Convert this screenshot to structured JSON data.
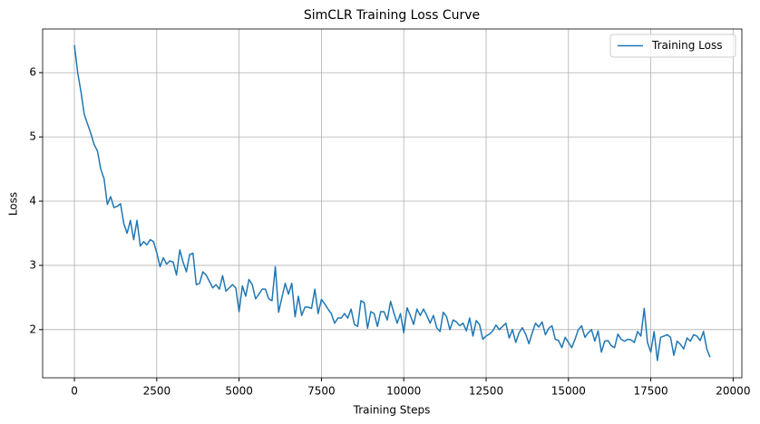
{
  "chart_data": {
    "type": "line",
    "title": "SimCLR Training Loss Curve",
    "x_label": "Training Steps",
    "y_label": "Loss",
    "x": [
      0,
      100,
      200,
      300,
      400,
      500,
      600,
      700,
      800,
      900,
      1000,
      1100,
      1200,
      1300,
      1400,
      1500,
      1600,
      1700,
      1800,
      1900,
      2000,
      2100,
      2200,
      2300,
      2400,
      2500,
      2600,
      2700,
      2800,
      2900,
      3000,
      3100,
      3200,
      3300,
      3400,
      3500,
      3600,
      3700,
      3800,
      3900,
      4000,
      4100,
      4200,
      4300,
      4400,
      4500,
      4600,
      4700,
      4800,
      4900,
      5000,
      5100,
      5200,
      5300,
      5400,
      5500,
      5600,
      5700,
      5800,
      5900,
      6000,
      6100,
      6200,
      6300,
      6400,
      6500,
      6600,
      6700,
      6800,
      6900,
      7000,
      7100,
      7200,
      7300,
      7400,
      7500,
      7600,
      7700,
      7800,
      7900,
      8000,
      8100,
      8200,
      8300,
      8400,
      8500,
      8600,
      8700,
      8800,
      8900,
      9000,
      9100,
      9200,
      9300,
      9400,
      9500,
      9600,
      9700,
      9800,
      9900,
      10000,
      10100,
      10200,
      10300,
      10400,
      10500,
      10600,
      10700,
      10800,
      10900,
      11000,
      11100,
      11200,
      11300,
      11400,
      11500,
      11600,
      11700,
      11800,
      11900,
      12000,
      12100,
      12200,
      12300,
      12400,
      12500,
      12600,
      12700,
      12800,
      12900,
      13000,
      13100,
      13200,
      13300,
      13400,
      13500,
      13600,
      13700,
      13800,
      13900,
      14000,
      14100,
      14200,
      14300,
      14400,
      14500,
      14600,
      14700,
      14800,
      14900,
      15000,
      15100,
      15200,
      15300,
      15400,
      15500,
      15600,
      15700,
      15800,
      15900,
      16000,
      16100,
      16200,
      16300,
      16400,
      16500,
      16600,
      16700,
      16800,
      16900,
      17000,
      17100,
      17200,
      17300,
      17400,
      17500,
      17600,
      17700,
      17800,
      17900,
      18000,
      18100,
      18200,
      18300,
      18400,
      18500,
      18600,
      18700,
      18800,
      18900,
      19000,
      19100,
      19200,
      19300
    ],
    "series": [
      {
        "name": "Training Loss",
        "color": "#1f77b4",
        "values": [
          6.43,
          6.0,
          5.7,
          5.35,
          5.2,
          5.05,
          4.88,
          4.78,
          4.5,
          4.35,
          3.95,
          4.07,
          3.9,
          3.92,
          3.96,
          3.65,
          3.5,
          3.7,
          3.4,
          3.7,
          3.3,
          3.37,
          3.32,
          3.4,
          3.37,
          3.2,
          2.98,
          3.12,
          3.02,
          3.07,
          3.05,
          2.85,
          3.24,
          3.05,
          2.9,
          3.17,
          3.19,
          2.7,
          2.72,
          2.9,
          2.85,
          2.75,
          2.65,
          2.7,
          2.63,
          2.84,
          2.6,
          2.65,
          2.7,
          2.65,
          2.28,
          2.68,
          2.52,
          2.78,
          2.7,
          2.48,
          2.55,
          2.63,
          2.63,
          2.48,
          2.45,
          2.98,
          2.27,
          2.5,
          2.72,
          2.55,
          2.72,
          2.2,
          2.52,
          2.22,
          2.35,
          2.35,
          2.33,
          2.63,
          2.25,
          2.47,
          2.4,
          2.32,
          2.25,
          2.1,
          2.18,
          2.18,
          2.25,
          2.18,
          2.32,
          2.08,
          2.05,
          2.45,
          2.42,
          2.02,
          2.28,
          2.25,
          2.05,
          2.28,
          2.28,
          2.15,
          2.44,
          2.26,
          2.1,
          2.25,
          1.95,
          2.34,
          2.22,
          2.08,
          2.32,
          2.22,
          2.32,
          2.22,
          2.1,
          2.22,
          2.03,
          1.97,
          2.27,
          2.2,
          2.0,
          2.15,
          2.12,
          2.06,
          2.1,
          1.98,
          2.18,
          1.9,
          2.14,
          2.08,
          1.85,
          1.9,
          1.93,
          1.98,
          2.07,
          2.0,
          2.05,
          2.1,
          1.87,
          2.0,
          1.8,
          1.95,
          2.03,
          1.93,
          1.78,
          1.95,
          2.1,
          2.04,
          2.12,
          1.92,
          2.02,
          2.06,
          1.85,
          1.83,
          1.72,
          1.88,
          1.8,
          1.72,
          1.85,
          2.0,
          2.06,
          1.88,
          1.95,
          2.0,
          1.82,
          1.98,
          1.65,
          1.82,
          1.83,
          1.75,
          1.72,
          1.93,
          1.85,
          1.82,
          1.85,
          1.84,
          1.8,
          1.97,
          1.9,
          2.33,
          1.8,
          1.65,
          1.97,
          1.52,
          1.88,
          1.9,
          1.92,
          1.88,
          1.6,
          1.82,
          1.77,
          1.7,
          1.87,
          1.82,
          1.92,
          1.9,
          1.83,
          1.97,
          1.7,
          1.57
        ]
      }
    ],
    "xlim": [
      -965,
      20265
    ],
    "ylim": [
      1.25,
      6.68
    ],
    "xticks": [
      0,
      2500,
      5000,
      7500,
      10000,
      12500,
      15000,
      17500,
      20000
    ],
    "yticks": [
      2,
      3,
      4,
      5,
      6
    ],
    "grid": true,
    "legend": "upper right"
  }
}
